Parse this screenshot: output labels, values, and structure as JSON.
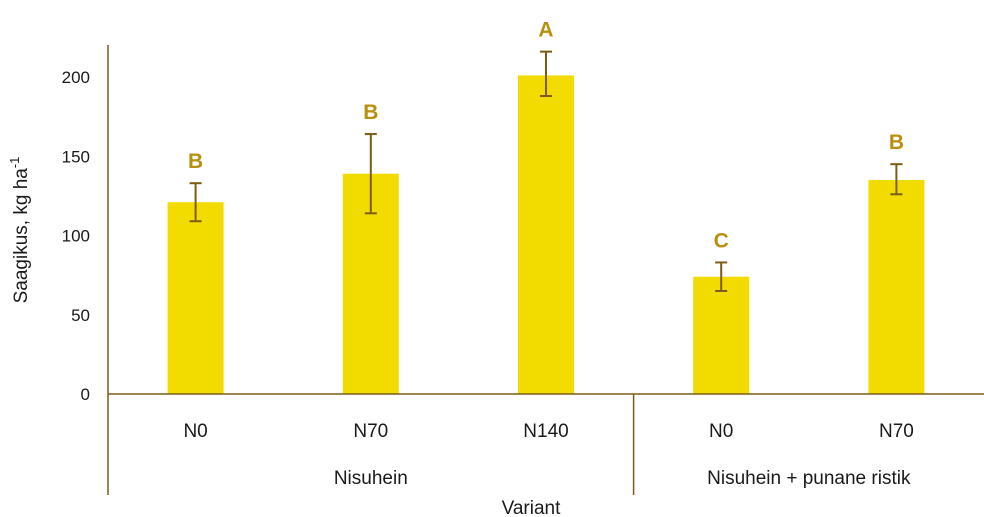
{
  "chart_data": {
    "type": "bar",
    "title": "",
    "xlabel": "Variant",
    "ylabel_main": "Saagikus, kg ha",
    "ylabel_sup": "-1",
    "ylim": [
      0,
      200
    ],
    "yticks": [
      "0",
      "50",
      "100",
      "150",
      "200"
    ],
    "categories": [
      "N0",
      "N70",
      "N140",
      "N0",
      "N70"
    ],
    "groups": [
      {
        "label": "Nisuhein",
        "count": 3
      },
      {
        "label": "Nisuhein + punane ristik",
        "count": 2
      }
    ],
    "values": [
      121,
      139,
      201,
      74,
      135
    ],
    "error_low": [
      109,
      114,
      188,
      65,
      126
    ],
    "error_high": [
      133,
      164,
      216,
      83,
      145
    ],
    "significance": [
      "B",
      "B",
      "A",
      "C",
      "B"
    ],
    "bar_color": "#f2dc00",
    "error_color": "#7a5c12",
    "significance_color": "#b8900f",
    "axis_color": "#7a5c12",
    "grid": false
  }
}
